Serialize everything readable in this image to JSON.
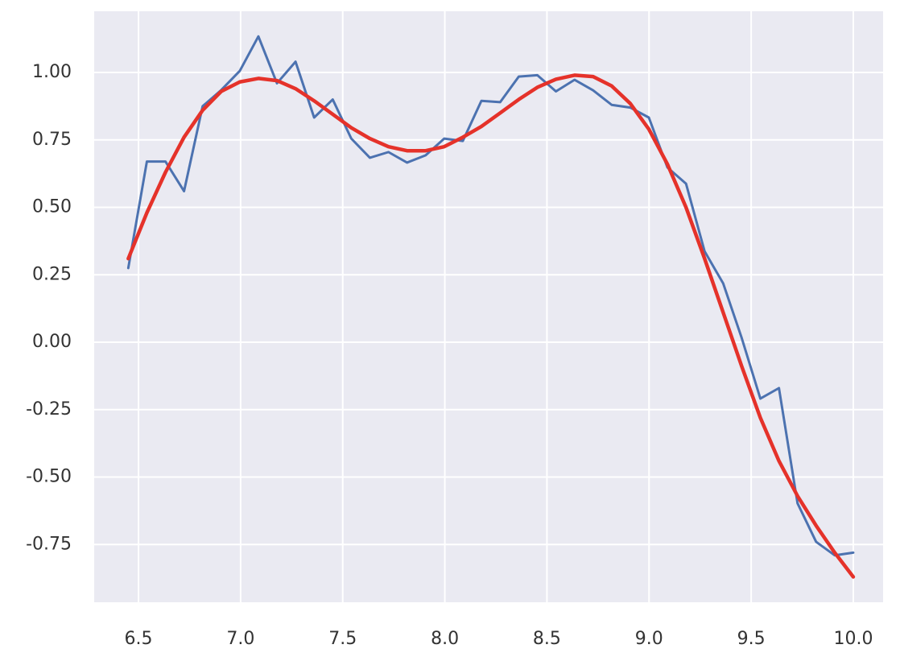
{
  "chart_data": {
    "type": "line",
    "x": [
      6.45,
      6.541,
      6.632,
      6.723,
      6.814,
      6.905,
      6.996,
      7.087,
      7.178,
      7.269,
      7.36,
      7.451,
      7.542,
      7.633,
      7.724,
      7.815,
      7.906,
      7.997,
      8.088,
      8.179,
      8.271,
      8.362,
      8.453,
      8.544,
      8.635,
      8.726,
      8.817,
      8.908,
      8.999,
      9.09,
      9.181,
      9.272,
      9.363,
      9.454,
      9.545,
      9.636,
      9.727,
      9.818,
      9.909,
      10.0
    ],
    "series": [
      {
        "color": "#4c72b0",
        "values": [
          0.275,
          0.67,
          0.67,
          0.56,
          0.875,
          0.935,
          1.006,
          1.134,
          0.96,
          1.04,
          0.833,
          0.9,
          0.755,
          0.684,
          0.705,
          0.666,
          0.693,
          0.755,
          0.746,
          0.895,
          0.89,
          0.985,
          0.99,
          0.93,
          0.973,
          0.934,
          0.88,
          0.87,
          0.833,
          0.648,
          0.588,
          0.337,
          0.218,
          0.015,
          -0.209,
          -0.17,
          -0.597,
          -0.74,
          -0.79,
          -0.78
        ]
      },
      {
        "color": "#e5322a",
        "values": [
          0.31,
          0.48,
          0.63,
          0.76,
          0.86,
          0.93,
          0.965,
          0.978,
          0.97,
          0.94,
          0.895,
          0.845,
          0.795,
          0.755,
          0.725,
          0.71,
          0.71,
          0.725,
          0.76,
          0.8,
          0.85,
          0.9,
          0.945,
          0.975,
          0.99,
          0.985,
          0.95,
          0.885,
          0.79,
          0.66,
          0.5,
          0.31,
          0.11,
          -0.09,
          -0.28,
          -0.44,
          -0.57,
          -0.68,
          -0.78,
          -0.87
        ]
      }
    ],
    "xlim": [
      6.283,
      10.146
    ],
    "xticks": [
      6.5,
      {
        "value": 7.0,
        "label": "7.0"
      },
      7.5,
      {
        "value": 8.0,
        "label": "8.0"
      },
      8.5,
      {
        "value": 9.0,
        "label": "9.0"
      },
      9.5,
      {
        "value": 10.0,
        "label": "10.0"
      }
    ],
    "ylim": [
      -0.964,
      1.227
    ],
    "yticks": [
      -0.75,
      {
        "value": -0.5,
        "label": "-0.50"
      },
      -0.25,
      {
        "value": 0,
        "label": "0.00"
      },
      0.25,
      {
        "value": 0.5,
        "label": "0.50"
      },
      0.75,
      {
        "value": 1,
        "label": "1.00"
      }
    ],
    "grid": true
  }
}
